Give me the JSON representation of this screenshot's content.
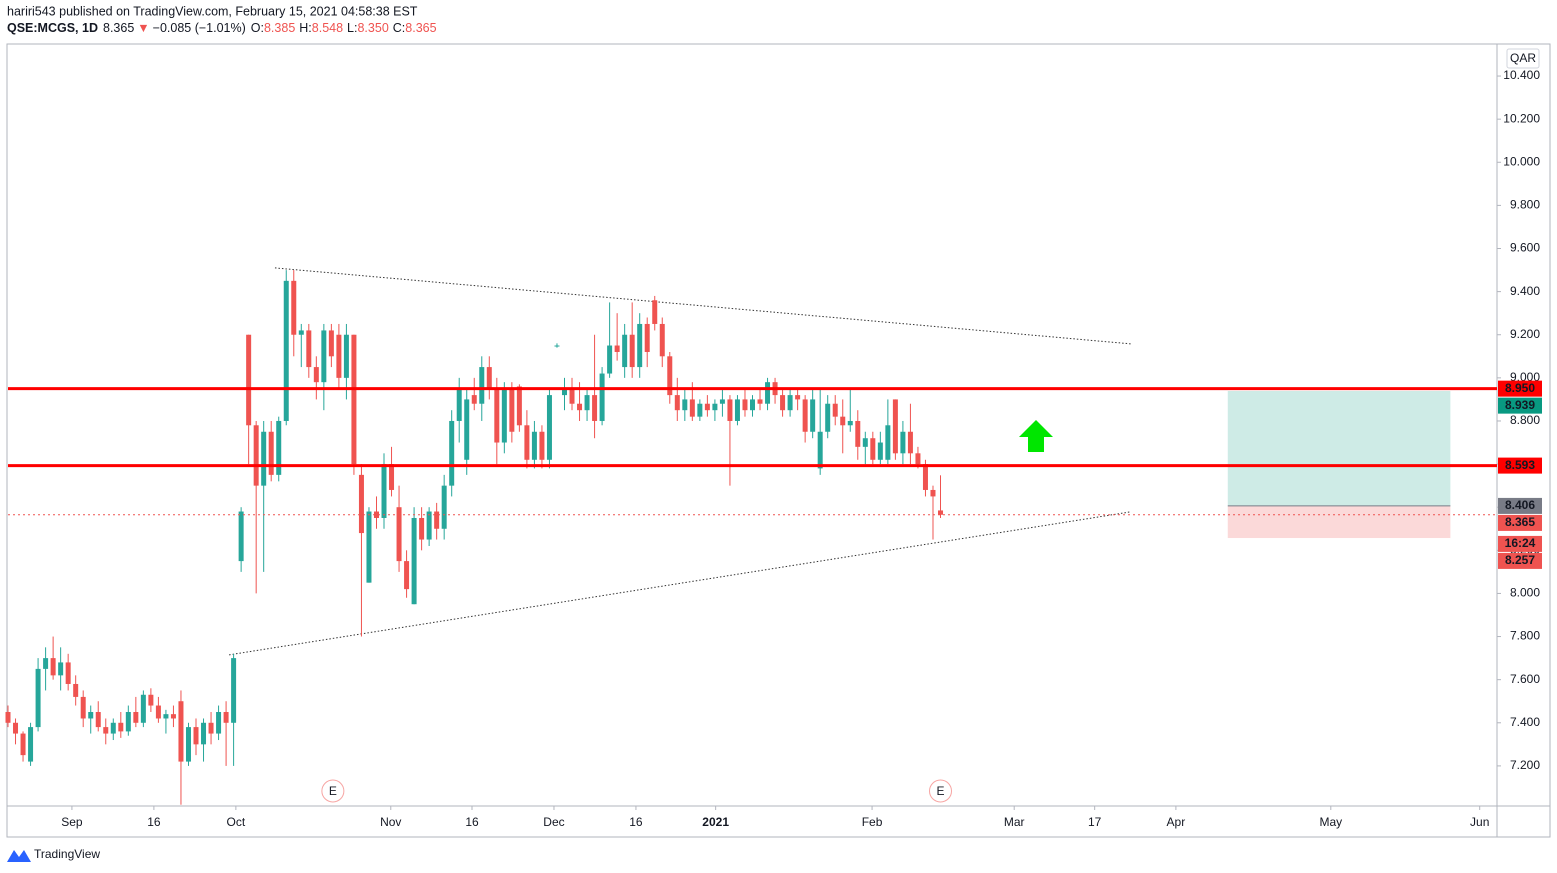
{
  "header": {
    "byline": "hariri543 published on TradingView.com, February 15, 2021 04:58:38 EST",
    "symbol": "QSE:MCGS, 1D",
    "last": "8.365",
    "direction": "▼",
    "change": "−0.085 (−1.01%)",
    "ohlc": [
      {
        "key": "O:",
        "value": "8.385"
      },
      {
        "key": "H:",
        "value": "8.548"
      },
      {
        "key": "L:",
        "value": "8.350"
      },
      {
        "key": "C:",
        "value": "8.365"
      }
    ]
  },
  "footer": {
    "logo": "TradingView"
  },
  "chart_data": {
    "type": "candlestick",
    "currency": "QAR",
    "up_color": "#26a69a",
    "down_color": "#ef5350",
    "x": [
      0,
      1,
      2,
      3,
      4,
      5,
      6,
      7,
      8,
      9,
      10,
      11,
      12,
      13,
      14,
      15,
      16,
      17,
      18,
      19,
      20,
      21,
      22,
      23,
      24,
      25,
      26,
      27,
      28,
      29,
      30,
      31,
      32,
      33,
      34,
      35,
      36,
      37,
      38,
      39,
      40,
      41,
      42,
      43,
      44,
      45,
      46,
      47,
      48,
      49,
      50,
      51,
      52,
      53,
      54,
      55,
      56,
      57,
      58,
      59,
      60,
      61,
      62,
      63,
      64,
      65,
      66,
      67,
      68,
      69,
      70,
      71,
      72,
      73,
      74,
      75,
      76,
      77,
      78,
      79,
      80,
      81,
      82,
      83,
      84,
      85,
      86,
      87,
      88,
      89,
      90,
      91,
      92,
      93,
      94,
      95,
      96,
      97,
      98,
      99,
      100,
      101,
      102,
      103,
      104,
      105,
      106,
      107,
      108,
      109,
      110,
      111,
      112,
      113,
      114,
      115,
      116,
      117,
      118,
      119,
      120,
      121,
      122,
      123,
      124
    ],
    "open": [
      7.45,
      7.4,
      7.35,
      7.22,
      7.38,
      7.65,
      7.7,
      7.62,
      7.68,
      7.58,
      7.52,
      7.42,
      7.45,
      7.38,
      7.35,
      7.4,
      7.36,
      7.45,
      7.4,
      7.53,
      7.48,
      7.42,
      7.44,
      7.5,
      7.22,
      7.38,
      7.3,
      7.4,
      7.35,
      7.45,
      7.4,
      8.15,
      9.2,
      8.78,
      8.5,
      8.75,
      8.55,
      8.8,
      9.45,
      9.2,
      9.22,
      9.05,
      8.98,
      9.22,
      9.2,
      9.0,
      9.2,
      8.55,
      8.05,
      8.38,
      8.35,
      8.6,
      8.4,
      8.15,
      7.95,
      8.35,
      8.25,
      8.38,
      8.3,
      8.5,
      8.8,
      8.62,
      8.92,
      8.88,
      9.05,
      8.95,
      8.7,
      8.95,
      8.96,
      8.78,
      8.62,
      8.75,
      8.62,
      9.15,
      8.92,
      8.95,
      8.88,
      8.85,
      8.92,
      8.8,
      9.02,
      9.15,
      9.05,
      9.2,
      9.05,
      9.25,
      9.36,
      9.25,
      9.1,
      8.92,
      8.85,
      8.9,
      8.82,
      8.88,
      8.85,
      8.88,
      8.9,
      8.8,
      8.9,
      8.85,
      8.9,
      8.88,
      8.98,
      8.92,
      8.85,
      8.92,
      8.9,
      8.75,
      8.58,
      8.75,
      8.88,
      8.82,
      8.78,
      8.8,
      8.68,
      8.72,
      8.62,
      8.62,
      8.9,
      8.65,
      8.75,
      8.65,
      8.6,
      8.48,
      8.385
    ],
    "high": [
      7.48,
      7.42,
      7.36,
      7.4,
      7.7,
      7.75,
      7.8,
      7.75,
      7.72,
      7.62,
      7.55,
      7.48,
      7.5,
      7.42,
      7.42,
      7.45,
      7.48,
      7.52,
      7.55,
      7.56,
      7.52,
      7.46,
      7.48,
      7.55,
      7.4,
      7.42,
      7.42,
      7.45,
      7.48,
      7.5,
      7.72,
      8.4,
      9.2,
      8.8,
      8.8,
      8.8,
      8.82,
      9.5,
      9.5,
      9.25,
      9.25,
      9.1,
      9.25,
      9.25,
      9.25,
      9.25,
      9.2,
      8.6,
      8.4,
      8.45,
      8.65,
      8.68,
      8.5,
      8.2,
      8.4,
      8.4,
      8.4,
      8.42,
      8.55,
      8.85,
      9.0,
      8.95,
      9.0,
      9.1,
      9.1,
      9.0,
      8.98,
      8.98,
      8.97,
      8.85,
      8.8,
      8.78,
      8.95,
      9.16,
      9.0,
      9.0,
      8.98,
      8.95,
      9.2,
      9.05,
      9.35,
      9.3,
      9.25,
      9.35,
      9.3,
      9.28,
      9.38,
      9.28,
      9.12,
      9.0,
      8.95,
      8.98,
      8.9,
      8.92,
      8.9,
      8.95,
      8.92,
      8.92,
      8.95,
      8.92,
      8.95,
      9.0,
      9.0,
      8.95,
      8.95,
      8.95,
      8.92,
      8.95,
      8.95,
      8.92,
      8.92,
      8.9,
      8.95,
      8.85,
      8.75,
      8.75,
      8.75,
      8.9,
      8.9,
      8.8,
      8.88,
      8.68,
      8.62,
      8.5,
      8.548
    ],
    "low": [
      7.38,
      7.3,
      7.22,
      7.2,
      7.36,
      7.55,
      7.6,
      7.55,
      7.55,
      7.48,
      7.38,
      7.35,
      7.36,
      7.3,
      7.32,
      7.33,
      7.34,
      7.38,
      7.38,
      7.45,
      7.4,
      7.35,
      7.38,
      7.02,
      7.2,
      7.25,
      7.22,
      7.3,
      7.32,
      7.2,
      7.2,
      8.1,
      8.6,
      8.0,
      8.1,
      8.52,
      8.52,
      8.78,
      9.1,
      9.05,
      9.0,
      8.9,
      8.85,
      9.05,
      8.95,
      8.9,
      8.55,
      7.8,
      8.05,
      8.3,
      8.3,
      8.45,
      8.1,
      7.98,
      7.95,
      8.2,
      8.22,
      8.25,
      8.25,
      8.45,
      8.7,
      8.55,
      8.85,
      8.8,
      8.9,
      8.6,
      8.65,
      8.7,
      8.75,
      8.58,
      8.58,
      8.58,
      8.58,
      9.14,
      8.85,
      8.85,
      8.8,
      8.8,
      8.72,
      8.78,
      9.0,
      9.08,
      9.0,
      9.0,
      9.0,
      9.05,
      9.22,
      9.05,
      8.88,
      8.8,
      8.8,
      8.8,
      8.8,
      8.82,
      8.8,
      8.82,
      8.5,
      8.78,
      8.82,
      8.82,
      8.85,
      8.85,
      8.88,
      8.82,
      8.82,
      8.85,
      8.7,
      8.72,
      8.55,
      8.72,
      8.78,
      8.65,
      8.75,
      8.62,
      8.6,
      8.6,
      8.6,
      8.6,
      8.62,
      8.6,
      8.6,
      8.58,
      8.45,
      8.25,
      8.35
    ],
    "close": [
      7.4,
      7.35,
      7.25,
      7.38,
      7.65,
      7.7,
      7.62,
      7.68,
      7.58,
      7.52,
      7.42,
      7.45,
      7.38,
      7.35,
      7.4,
      7.36,
      7.45,
      7.4,
      7.53,
      7.48,
      7.42,
      7.44,
      7.42,
      7.22,
      7.38,
      7.3,
      7.4,
      7.35,
      7.45,
      7.4,
      7.7,
      8.38,
      8.78,
      8.5,
      8.75,
      8.55,
      8.8,
      9.45,
      9.2,
      9.22,
      9.05,
      8.98,
      9.22,
      9.1,
      9.0,
      9.2,
      8.6,
      8.28,
      8.38,
      8.35,
      8.6,
      8.48,
      8.15,
      8.02,
      8.35,
      8.25,
      8.38,
      8.3,
      8.5,
      8.8,
      8.95,
      8.9,
      8.88,
      9.05,
      8.95,
      8.7,
      8.95,
      8.75,
      8.78,
      8.62,
      8.75,
      8.62,
      8.92,
      9.15,
      8.95,
      8.88,
      8.85,
      8.92,
      8.8,
      9.02,
      9.15,
      9.12,
      9.2,
      9.05,
      9.25,
      9.12,
      9.25,
      9.1,
      8.92,
      8.85,
      8.9,
      8.82,
      8.88,
      8.85,
      8.88,
      8.9,
      8.8,
      8.9,
      8.85,
      8.9,
      8.88,
      8.98,
      8.92,
      8.85,
      8.92,
      8.9,
      8.75,
      8.9,
      8.75,
      8.88,
      8.82,
      8.78,
      8.8,
      8.68,
      8.72,
      8.62,
      8.7,
      8.78,
      8.65,
      8.75,
      8.65,
      8.6,
      8.48,
      8.45,
      8.365
    ],
    "xlim": [
      0,
      198
    ],
    "xticks": [
      {
        "value": 8.5,
        "label": "Sep"
      },
      {
        "value": 19.4,
        "label": "16"
      },
      {
        "value": 30.3,
        "label": "Oct"
      },
      {
        "value": 50.9,
        "label": "Nov"
      },
      {
        "value": 61.7,
        "label": "16"
      },
      {
        "value": 72.6,
        "label": "Dec"
      },
      {
        "value": 83.5,
        "label": "16"
      },
      {
        "value": 94.1,
        "label": "2021"
      },
      {
        "value": 114.9,
        "label": "Feb"
      },
      {
        "value": 133.8,
        "label": "Mar"
      },
      {
        "value": 144.5,
        "label": "17"
      },
      {
        "value": 155.3,
        "label": "Apr"
      },
      {
        "value": 175.9,
        "label": "May"
      },
      {
        "value": 195.7,
        "label": "Jun"
      }
    ],
    "ylim": [
      7.014,
      10.544
    ],
    "yticks": [
      {
        "value": 7.2,
        "label": "7.200"
      },
      {
        "value": 7.4,
        "label": "7.400"
      },
      {
        "value": 7.6,
        "label": "7.600"
      },
      {
        "value": 7.8,
        "label": "7.800"
      },
      {
        "value": 8,
        "label": "8.000"
      },
      {
        "value": 8.2,
        "label": "8.200"
      },
      {
        "value": 8.4,
        "label": "8.400"
      },
      {
        "value": 8.6,
        "label": "8.600"
      },
      {
        "value": 8.8,
        "label": "8.800"
      },
      {
        "value": 9,
        "label": "9.000"
      },
      {
        "value": 9.2,
        "label": "9.200"
      },
      {
        "value": 9.4,
        "label": "9.400"
      },
      {
        "value": 9.6,
        "label": "9.600"
      },
      {
        "value": 9.8,
        "label": "9.800"
      },
      {
        "value": 10,
        "label": "10.000"
      },
      {
        "value": 10.2,
        "label": "10.200"
      },
      {
        "value": 10.4,
        "label": "10.400"
      }
    ],
    "grid": false,
    "levels": [
      {
        "value": 8.95,
        "label": "8.950",
        "color": "#ff0000"
      },
      {
        "value": 8.593,
        "label": "8.593",
        "color": "#ff0000"
      }
    ],
    "last_price": {
      "value": 8.365,
      "label": "8.365",
      "countdown": "16:24",
      "color": "#ef5350"
    },
    "position": {
      "x": [
        162.2,
        191.8
      ],
      "target": 8.939,
      "target_label": "8.939",
      "entry": 8.406,
      "entry_label": "8.406",
      "stop": 8.257,
      "stop_label": "8.257",
      "target_color": "#089981",
      "entry_color": "#787b86",
      "stop_color": "#ef5350"
    },
    "trendlines": [
      {
        "x": [
          35.5,
          149.5
        ],
        "values": [
          9.51,
          9.157
        ]
      },
      {
        "x": [
          29.4,
          149.2
        ],
        "values": [
          7.715,
          8.378
        ]
      }
    ],
    "events": [
      {
        "x": 43.2,
        "label": "E"
      },
      {
        "x": 124,
        "label": "E"
      }
    ]
  }
}
